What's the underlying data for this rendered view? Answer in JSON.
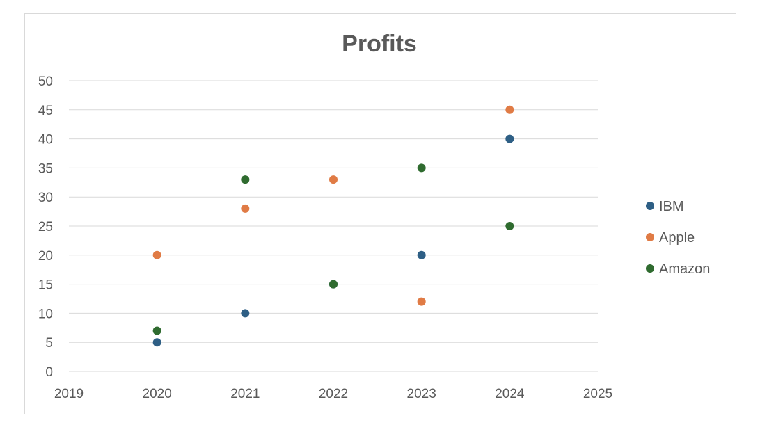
{
  "chart_data": {
    "type": "scatter",
    "title": "Profits",
    "xlabel": "",
    "ylabel": "",
    "xlim": [
      2019,
      2025
    ],
    "ylim": [
      0,
      50
    ],
    "xticks": [
      "2019",
      "2020",
      "2021",
      "2022",
      "2023",
      "2024",
      "2025"
    ],
    "yticks": [
      "0",
      "5",
      "10",
      "15",
      "20",
      "25",
      "30",
      "35",
      "40",
      "45",
      "50"
    ],
    "grid": "horizontal",
    "legend_position": "right",
    "series": [
      {
        "name": "IBM",
        "color": "#2e5f85",
        "points": [
          {
            "x": 2020,
            "y": 5
          },
          {
            "x": 2021,
            "y": 10
          },
          {
            "x": 2022,
            "y": 15
          },
          {
            "x": 2023,
            "y": 20
          },
          {
            "x": 2024,
            "y": 40
          }
        ]
      },
      {
        "name": "Apple",
        "color": "#e07b45",
        "points": [
          {
            "x": 2020,
            "y": 20
          },
          {
            "x": 2021,
            "y": 28
          },
          {
            "x": 2022,
            "y": 33
          },
          {
            "x": 2023,
            "y": 12
          },
          {
            "x": 2024,
            "y": 45
          }
        ]
      },
      {
        "name": "Amazon",
        "color": "#2f6b2f",
        "points": [
          {
            "x": 2020,
            "y": 7
          },
          {
            "x": 2021,
            "y": 33
          },
          {
            "x": 2022,
            "y": 15
          },
          {
            "x": 2023,
            "y": 35
          },
          {
            "x": 2024,
            "y": 25
          }
        ]
      }
    ]
  }
}
